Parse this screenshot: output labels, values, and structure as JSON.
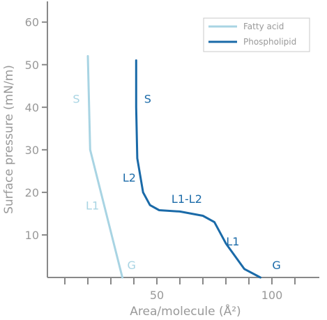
{
  "chart_data": {
    "type": "line",
    "xlabel": "Area/molecule (Å²)",
    "ylabel": "Surface pressure (mN/m)",
    "xlim": [
      0,
      120
    ],
    "ylim": [
      0,
      65
    ],
    "x_tick_labels": [
      {
        "value": 50,
        "label": "50"
      },
      {
        "value": 100,
        "label": "100"
      }
    ],
    "x_minor_ticks": [
      10,
      20,
      30,
      40,
      50,
      60,
      70,
      80,
      90,
      100,
      110
    ],
    "y_ticks": [
      10,
      20,
      30,
      40,
      50,
      60
    ],
    "legend": {
      "position": "top-right"
    },
    "colors": {
      "fatty_acid": "#a8d4e3",
      "phospholipid": "#1a6aa8",
      "axis": "#888888",
      "text": "#999999"
    },
    "series": [
      {
        "name": "Fatty acid",
        "color": "#a8d4e3",
        "points": [
          [
            20,
            52
          ],
          [
            21,
            30
          ],
          [
            35,
            0
          ]
        ],
        "phase_labels": [
          {
            "text": "S",
            "x": 15,
            "y": 41
          },
          {
            "text": "L1",
            "x": 22,
            "y": 16
          },
          {
            "text": "G",
            "x": 39,
            "y": 2
          }
        ]
      },
      {
        "name": "Phospholipid",
        "color": "#1a6aa8",
        "points": [
          [
            41,
            51
          ],
          [
            41,
            40
          ],
          [
            41.5,
            28
          ],
          [
            44,
            20
          ],
          [
            47,
            17
          ],
          [
            51,
            15.8
          ],
          [
            60,
            15.5
          ],
          [
            70,
            14.5
          ],
          [
            75,
            13
          ],
          [
            80,
            8
          ],
          [
            88,
            2
          ],
          [
            95,
            0
          ]
        ],
        "phase_labels": [
          {
            "text": "S",
            "x": 46,
            "y": 41
          },
          {
            "text": "L2",
            "x": 38,
            "y": 22.5
          },
          {
            "text": "L1-L2",
            "x": 63,
            "y": 17.5
          },
          {
            "text": "L1",
            "x": 83,
            "y": 7.5
          },
          {
            "text": "G",
            "x": 102,
            "y": 2
          }
        ]
      }
    ]
  }
}
